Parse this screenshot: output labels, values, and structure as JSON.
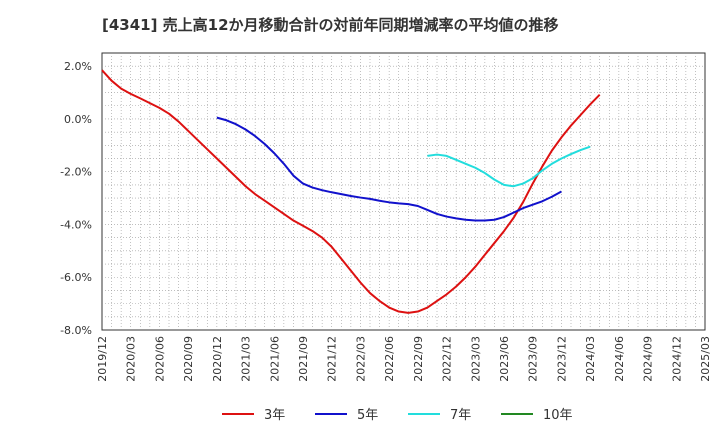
{
  "chart_data": {
    "type": "line",
    "title": "[4341]  売上高12か月移動合計の対前年同期増減率の平均値の推移",
    "xlabel": "",
    "ylabel": "",
    "ylim": [
      -8.0,
      2.5
    ],
    "y_ticks": [
      2.0,
      0.0,
      -2.0,
      -4.0,
      -6.0,
      -8.0
    ],
    "y_tick_labels": [
      "2.0%",
      "0.0%",
      "-2.0%",
      "-4.0%",
      "-6.0%",
      "-8.0%"
    ],
    "x_tick_labels": [
      "2019/12",
      "2020/03",
      "2020/06",
      "2020/09",
      "2020/12",
      "2021/03",
      "2021/06",
      "2021/09",
      "2021/12",
      "2022/03",
      "2022/06",
      "2022/09",
      "2022/12",
      "2023/03",
      "2023/06",
      "2023/09",
      "2023/12",
      "2024/03",
      "2024/06",
      "2024/09",
      "2024/12",
      "2025/03"
    ],
    "grid": true,
    "legend_position": "bottom",
    "series": [
      {
        "name": "3年",
        "color": "#dd1111",
        "start_index": 0,
        "values": [
          1.85,
          1.45,
          1.15,
          0.95,
          0.78,
          0.6,
          0.42,
          0.2,
          -0.1,
          -0.45,
          -0.8,
          -1.15,
          -1.5,
          -1.85,
          -2.2,
          -2.55,
          -2.85,
          -3.1,
          -3.35,
          -3.6,
          -3.85,
          -4.05,
          -4.25,
          -4.5,
          -4.85,
          -5.3,
          -5.75,
          -6.2,
          -6.6,
          -6.9,
          -7.15,
          -7.3,
          -7.35,
          -7.3,
          -7.15,
          -6.9,
          -6.65,
          -6.35,
          -6.0,
          -5.6,
          -5.15,
          -4.7,
          -4.25,
          -3.75,
          -3.15,
          -2.45,
          -1.8,
          -1.2,
          -0.7,
          -0.25,
          0.15,
          0.55,
          0.92
        ]
      },
      {
        "name": "5年",
        "color": "#1111cc",
        "start_index": 12,
        "values": [
          0.05,
          -0.05,
          -0.2,
          -0.4,
          -0.65,
          -0.95,
          -1.3,
          -1.7,
          -2.15,
          -2.45,
          -2.6,
          -2.7,
          -2.78,
          -2.85,
          -2.92,
          -2.98,
          -3.03,
          -3.1,
          -3.16,
          -3.2,
          -3.23,
          -3.3,
          -3.45,
          -3.6,
          -3.7,
          -3.77,
          -3.82,
          -3.85,
          -3.85,
          -3.82,
          -3.72,
          -3.55,
          -3.38,
          -3.25,
          -3.12,
          -2.95,
          -2.75
        ]
      },
      {
        "name": "7年",
        "color": "#22dddd",
        "start_index": 34,
        "values": [
          -1.4,
          -1.35,
          -1.4,
          -1.55,
          -1.7,
          -1.85,
          -2.05,
          -2.3,
          -2.5,
          -2.55,
          -2.45,
          -2.25,
          -1.95,
          -1.7,
          -1.5,
          -1.33,
          -1.18,
          -1.05
        ]
      },
      {
        "name": "10年",
        "color": "#228822",
        "start_index": 0,
        "values": []
      }
    ]
  }
}
